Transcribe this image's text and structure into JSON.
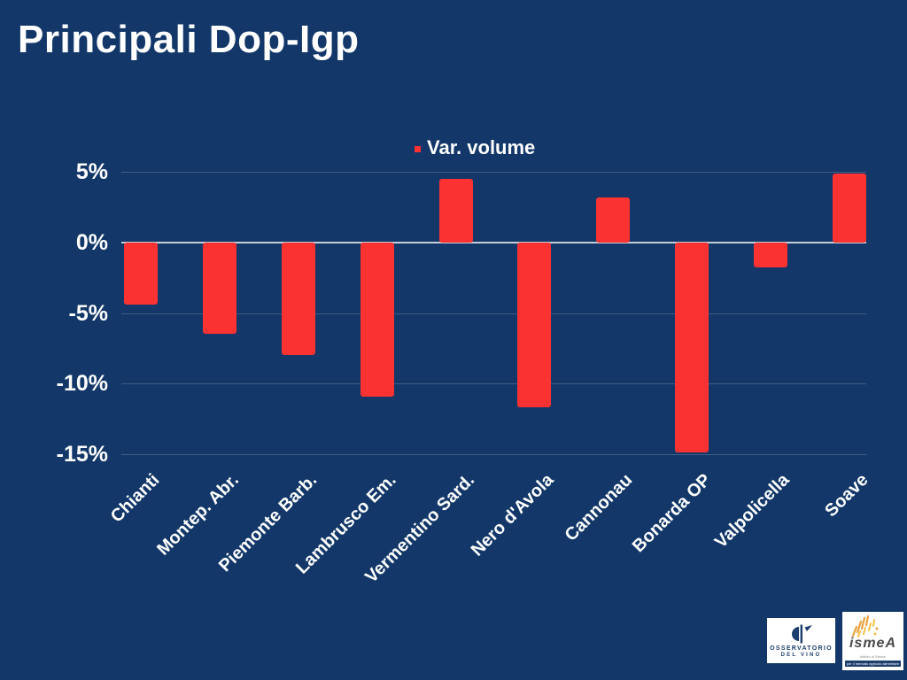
{
  "slide": {
    "background_color": "#123768",
    "title": "Principali Dop-Igp"
  },
  "chart_data": {
    "type": "bar",
    "title": "Principali Dop-Igp",
    "legend": {
      "label": "Var. volume",
      "marker_color": "#FA3232",
      "position": "top-center"
    },
    "categories": [
      "Chianti",
      "Montep. Abr.",
      "Piemonte Barb.",
      "Lambrusco Em.",
      "Vermentino Sard.",
      "Nero d'Avola",
      "Cannonau",
      "Bonarda OP",
      "Valpolicella",
      "Soave"
    ],
    "values": [
      -4.4,
      -6.5,
      -8.0,
      -10.9,
      4.5,
      -11.7,
      3.2,
      -14.9,
      -1.8,
      4.9
    ],
    "unit": "%",
    "bar_color": "#FA3232",
    "xlabel": "",
    "ylabel": "",
    "ylim": [
      -15,
      5
    ],
    "yticks": [
      {
        "label": "5%",
        "value": 5
      },
      {
        "label": "0%",
        "value": 0
      },
      {
        "label": "-5%",
        "value": -5
      },
      {
        "label": "-10%",
        "value": -10
      },
      {
        "label": "-15%",
        "value": -15
      }
    ],
    "grid": true,
    "zero_line_color": "#C7CDD6",
    "x_tick_rotation": 45
  },
  "footer": {
    "logos": [
      {
        "name": "osservatorio-del-vino",
        "line1": "OSSERVATORIO",
        "line2": "DEL VINO"
      },
      {
        "name": "ismea",
        "brand": "ismeA",
        "tagline1": "Istituto di Servizi",
        "tagline2": "per il mercato agricolo alimentare"
      }
    ]
  }
}
